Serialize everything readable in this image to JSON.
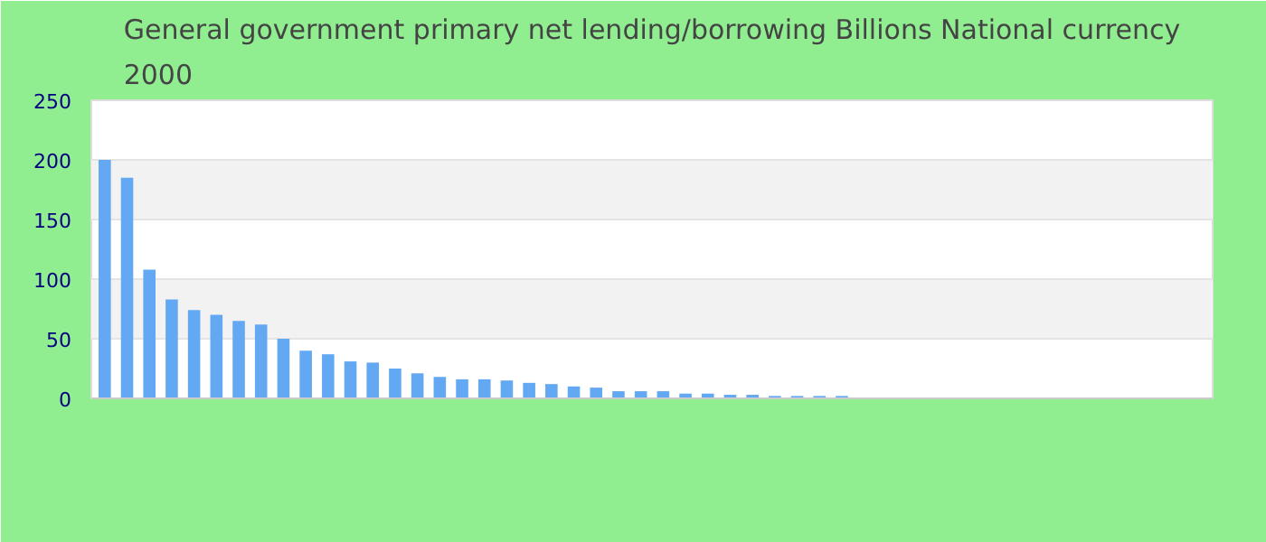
{
  "chart_data": {
    "type": "bar",
    "title": "General government primary net lending/borrowing Billions National currency\n2000",
    "categories": [
      null,
      null,
      null,
      null,
      null,
      null,
      null,
      null,
      null,
      null,
      null,
      null,
      null,
      null,
      null,
      null,
      null,
      null,
      null,
      null,
      null,
      null,
      null,
      null,
      null,
      null,
      null,
      null,
      null,
      null,
      null,
      null,
      null,
      null,
      null,
      null,
      null,
      null,
      null,
      null,
      null,
      null,
      null,
      null,
      null,
      null,
      null,
      null,
      null,
      null
    ],
    "values": [
      200,
      185,
      108,
      83,
      74,
      70,
      65,
      62,
      50,
      40,
      37,
      31,
      30,
      25,
      21,
      18,
      16,
      16,
      15,
      13,
      12,
      10,
      9,
      6,
      6,
      6,
      4,
      4,
      3,
      3,
      2,
      2,
      2,
      2,
      0,
      0,
      0,
      0,
      0,
      0,
      0,
      0,
      0,
      0,
      0,
      0,
      0,
      0,
      0,
      0
    ],
    "color": "#63a8f2",
    "ylim": [
      0,
      250
    ],
    "yticks": [
      0,
      50,
      100,
      150,
      200,
      250
    ],
    "grid": "y"
  }
}
